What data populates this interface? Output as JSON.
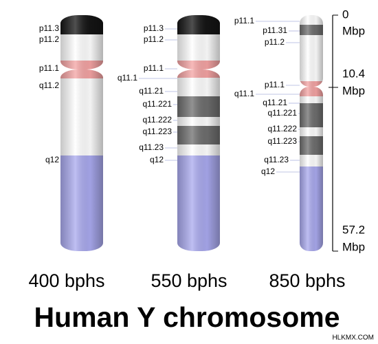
{
  "title": "Human Y chromosome",
  "watermark": "HLKMX.COM",
  "chromosomes": [
    {
      "label": "400 bphs",
      "bands": [
        "p11.3",
        "p11.2",
        "p11.1",
        "q11.2",
        "q12"
      ]
    },
    {
      "label": "550 bphs",
      "bands": [
        "p11.3",
        "p11.2",
        "p11.1",
        "q11.1",
        "q11.21",
        "q11.221",
        "q11.222",
        "q11.223",
        "q11.23",
        "q12"
      ]
    },
    {
      "label": "850 bphs",
      "bands": [
        "p11.1",
        "p11.31",
        "p11.2",
        "p11.1",
        "q11.1",
        "q11.21",
        "q11.221",
        "q11.222",
        "q11.223",
        "q11.23",
        "q12"
      ]
    }
  ],
  "scale": [
    {
      "value": "0",
      "unit": "Mbp"
    },
    {
      "value": "10.4",
      "unit": "Mbp"
    },
    {
      "value": "57.2",
      "unit": "Mbp"
    }
  ]
}
